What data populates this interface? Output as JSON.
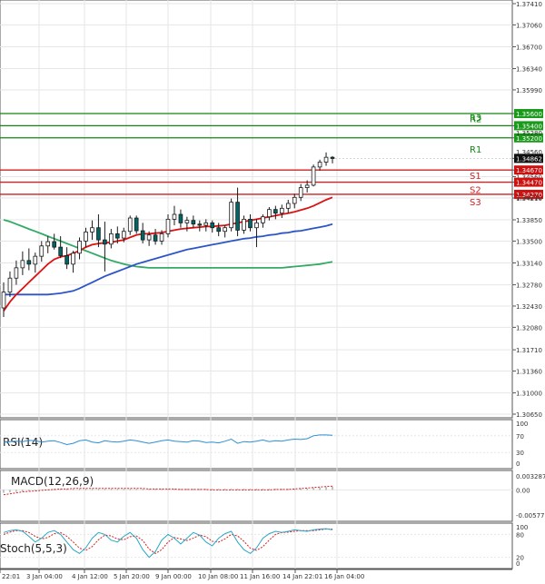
{
  "colors": {
    "background": "#ffffff",
    "grid": "#e6e6e6",
    "frame": "#555555",
    "bull_body": "#ffffff",
    "bear_body": "#006666",
    "candle_outline": "#1a1a1a",
    "ma_red": "#dd1111",
    "ma_blue": "#2d55c8",
    "ma_green": "#33aa66",
    "resistance": "#118811",
    "support": "#cc2222",
    "rsi_line": "#2a8fd6",
    "macd_hist": "#888888",
    "macd_signal": "#d62020",
    "stoch_main": "#2aa6c8",
    "stoch_signal": "#d62020",
    "current_price_bg": "#111111",
    "label_box_red": "#cc1111",
    "label_box_green": "#1a9a1a"
  },
  "chart_data": [
    {
      "type": "candlestick",
      "pane": "price",
      "ylim": [
        1.3065,
        1.3741
      ],
      "y_ticks": [
        "1.37410",
        "1.37060",
        "1.36700",
        "1.36340",
        "1.35990",
        "1.35600",
        "1.35400",
        "1.35200",
        "1.34862",
        "1.34670",
        "1.34560",
        "1.34470",
        "1.34270",
        "1.34210",
        "1.33850",
        "1.33500",
        "1.33140",
        "1.32780",
        "1.32430",
        "1.32080",
        "1.31710",
        "1.31360",
        "1.31000",
        "1.30650"
      ],
      "current_price": 1.34862,
      "current_price_label": "1.34862",
      "levels": [
        {
          "name": "R3",
          "value": 1.356,
          "label": "1.35600",
          "kind": "resistance"
        },
        {
          "name": "R2",
          "value": 1.354,
          "label": "1.35400",
          "kind": "resistance"
        },
        {
          "name": "R1",
          "value": 1.352,
          "label": "1.35200",
          "kind": "resistance"
        },
        {
          "name": "S1",
          "value": 1.3467,
          "label": "1.34670",
          "kind": "support"
        },
        {
          "name": "S2",
          "value": 1.3447,
          "label": "1.34470",
          "kind": "support"
        },
        {
          "name": "S3",
          "value": 1.3427,
          "label": "1.34270",
          "kind": "support"
        }
      ],
      "extra_tick_labels": [
        "1.35280",
        "1.34560",
        "1.34210"
      ],
      "ohlc": [
        [
          1.324,
          1.3282,
          1.3225,
          1.3266
        ],
        [
          1.3266,
          1.33,
          1.3258,
          1.3289
        ],
        [
          1.3289,
          1.3318,
          1.3278,
          1.3306
        ],
        [
          1.3306,
          1.3333,
          1.3294,
          1.3318
        ],
        [
          1.3318,
          1.3338,
          1.3302,
          1.3312
        ],
        [
          1.3312,
          1.3331,
          1.3298,
          1.3325
        ],
        [
          1.3325,
          1.335,
          1.3316,
          1.3342
        ],
        [
          1.3342,
          1.3358,
          1.333,
          1.3349
        ],
        [
          1.3349,
          1.3362,
          1.3336,
          1.334
        ],
        [
          1.334,
          1.3358,
          1.3322,
          1.3326
        ],
        [
          1.3326,
          1.334,
          1.3304,
          1.3312
        ],
        [
          1.3312,
          1.3334,
          1.3298,
          1.333
        ],
        [
          1.333,
          1.3356,
          1.332,
          1.335
        ],
        [
          1.335,
          1.3372,
          1.334,
          1.3365
        ],
        [
          1.3365,
          1.3384,
          1.3352,
          1.3372
        ],
        [
          1.3372,
          1.3394,
          1.334,
          1.3352
        ],
        [
          1.3352,
          1.3382,
          1.33,
          1.3345
        ],
        [
          1.3345,
          1.337,
          1.3338,
          1.3362
        ],
        [
          1.3362,
          1.3374,
          1.3346,
          1.3355
        ],
        [
          1.3355,
          1.3372,
          1.3348,
          1.3366
        ],
        [
          1.3366,
          1.3392,
          1.336,
          1.3388
        ],
        [
          1.3388,
          1.3392,
          1.3362,
          1.3367
        ],
        [
          1.3367,
          1.338,
          1.3346,
          1.3352
        ],
        [
          1.3352,
          1.3366,
          1.3342,
          1.336
        ],
        [
          1.336,
          1.337,
          1.3344,
          1.335
        ],
        [
          1.335,
          1.3368,
          1.3344,
          1.3362
        ],
        [
          1.3362,
          1.3394,
          1.3356,
          1.3386
        ],
        [
          1.3386,
          1.3408,
          1.3376,
          1.3394
        ],
        [
          1.3394,
          1.3402,
          1.3372,
          1.338
        ],
        [
          1.338,
          1.339,
          1.3366,
          1.3384
        ],
        [
          1.3384,
          1.3392,
          1.3372,
          1.3378
        ],
        [
          1.3378,
          1.3384,
          1.3366,
          1.3376
        ],
        [
          1.3376,
          1.3386,
          1.3366,
          1.338
        ],
        [
          1.338,
          1.3384,
          1.3364,
          1.3372
        ],
        [
          1.3372,
          1.338,
          1.3358,
          1.3366
        ],
        [
          1.3366,
          1.3376,
          1.3356,
          1.3372
        ],
        [
          1.3372,
          1.342,
          1.3366,
          1.3414
        ],
        [
          1.3414,
          1.3438,
          1.3358,
          1.3368
        ],
        [
          1.3368,
          1.3392,
          1.3362,
          1.3386
        ],
        [
          1.3386,
          1.3394,
          1.3366,
          1.3372
        ],
        [
          1.3372,
          1.3386,
          1.334,
          1.338
        ],
        [
          1.338,
          1.3394,
          1.3372,
          1.339
        ],
        [
          1.339,
          1.3406,
          1.3384,
          1.3402
        ],
        [
          1.3402,
          1.3408,
          1.3386,
          1.3396
        ],
        [
          1.3396,
          1.341,
          1.3388,
          1.3404
        ],
        [
          1.3404,
          1.3418,
          1.3396,
          1.3412
        ],
        [
          1.3412,
          1.3428,
          1.3404,
          1.3422
        ],
        [
          1.3422,
          1.3444,
          1.3416,
          1.3438
        ],
        [
          1.3438,
          1.345,
          1.343,
          1.3442
        ],
        [
          1.3442,
          1.3476,
          1.344,
          1.3472
        ],
        [
          1.3472,
          1.3484,
          1.3466,
          1.348
        ],
        [
          1.348,
          1.3496,
          1.3474,
          1.3488
        ],
        [
          1.3488,
          1.349,
          1.3478,
          1.3486
        ]
      ],
      "ma_red": [
        1.3235,
        1.325,
        1.3262,
        1.3272,
        1.3282,
        1.3292,
        1.3302,
        1.3312,
        1.332,
        1.3324,
        1.3326,
        1.333,
        1.3334,
        1.334,
        1.3344,
        1.3346,
        1.3347,
        1.3348,
        1.335,
        1.3352,
        1.3356,
        1.336,
        1.3362,
        1.3362,
        1.3363,
        1.3364,
        1.3366,
        1.3368,
        1.337,
        1.3371,
        1.3372,
        1.3373,
        1.3374,
        1.3374,
        1.3375,
        1.3376,
        1.3378,
        1.338,
        1.3382,
        1.3384,
        1.3386,
        1.3388,
        1.339,
        1.3392,
        1.3394,
        1.3396,
        1.3398,
        1.3401,
        1.3404,
        1.3408,
        1.3413,
        1.3418,
        1.3422
      ],
      "ma_blue": [
        1.3262,
        1.3262,
        1.3262,
        1.3262,
        1.3262,
        1.3262,
        1.3262,
        1.3262,
        1.3263,
        1.3264,
        1.3266,
        1.3268,
        1.3272,
        1.3277,
        1.3282,
        1.3287,
        1.3292,
        1.3296,
        1.33,
        1.3304,
        1.3308,
        1.3312,
        1.3315,
        1.3318,
        1.3321,
        1.3324,
        1.3327,
        1.333,
        1.3333,
        1.3336,
        1.3338,
        1.334,
        1.3342,
        1.3344,
        1.3346,
        1.3348,
        1.335,
        1.3352,
        1.3354,
        1.3355,
        1.3357,
        1.3358,
        1.336,
        1.3361,
        1.3363,
        1.3364,
        1.3366,
        1.3367,
        1.3369,
        1.3371,
        1.3373,
        1.3375,
        1.3378
      ],
      "ma_green": [
        1.3385,
        1.3382,
        1.3378,
        1.3374,
        1.337,
        1.3366,
        1.3362,
        1.3358,
        1.3354,
        1.335,
        1.3346,
        1.3342,
        1.3338,
        1.3334,
        1.333,
        1.3326,
        1.3322,
        1.3318,
        1.3315,
        1.3312,
        1.331,
        1.3308,
        1.3307,
        1.3306,
        1.3306,
        1.3306,
        1.3306,
        1.3306,
        1.3306,
        1.3306,
        1.3306,
        1.3306,
        1.3306,
        1.3306,
        1.3306,
        1.3306,
        1.3306,
        1.3306,
        1.3306,
        1.3306,
        1.3306,
        1.3306,
        1.3306,
        1.3306,
        1.3306,
        1.3307,
        1.3308,
        1.3309,
        1.331,
        1.3311,
        1.3312,
        1.3314,
        1.3316
      ]
    },
    {
      "type": "line",
      "pane": "rsi",
      "label": "RSI(14)",
      "ylim": [
        0,
        100
      ],
      "y_ticks": [
        "100",
        "70",
        "30",
        "0"
      ],
      "values": [
        55,
        56,
        57,
        56,
        59,
        58,
        55,
        57,
        58,
        54,
        49,
        52,
        58,
        60,
        55,
        53,
        58,
        56,
        55,
        57,
        60,
        58,
        55,
        52,
        55,
        58,
        60,
        57,
        56,
        55,
        58,
        57,
        54,
        55,
        53,
        57,
        62,
        52,
        56,
        55,
        57,
        60,
        56,
        58,
        57,
        60,
        62,
        61,
        63,
        70,
        72,
        72,
        71
      ]
    },
    {
      "type": "bar",
      "pane": "macd",
      "label": "MACD(12,26,9)",
      "ylim": [
        -0.005772,
        0.003287
      ],
      "y_ticks": [
        "0.003287",
        "0.00",
        "-0.005772"
      ],
      "histogram": [
        -0.0006,
        -0.0005,
        -0.0004,
        -0.0003,
        -0.0002,
        -0.0001,
        0.0,
        0.0001,
        0.0002,
        0.0002,
        0.0002,
        0.0002,
        0.0002,
        0.0002,
        0.0002,
        0.0002,
        0.0002,
        0.0002,
        0.0002,
        0.0002,
        0.0002,
        0.0002,
        0.0002,
        0.0002,
        0.0002,
        0.0002,
        0.0002,
        0.0002,
        0.0002,
        0.0002,
        0.0002,
        0.0002,
        0.0002,
        0.0002,
        0.0002,
        0.0002,
        0.0002,
        0.0002,
        0.0002,
        0.0002,
        0.0002,
        0.0002,
        0.0002,
        0.0002,
        0.0002,
        0.0002,
        0.0002,
        0.0003,
        0.0003,
        0.0004,
        0.0005,
        0.0006,
        0.0007
      ],
      "signal": [
        -0.001,
        -0.0008,
        -0.0006,
        -0.0004,
        -0.0003,
        -0.0002,
        -0.0001,
        0.0,
        0.0001,
        0.0002,
        0.0002,
        0.0003,
        0.0003,
        0.0003,
        0.0003,
        0.0003,
        0.0003,
        0.0003,
        0.0003,
        0.0003,
        0.0003,
        0.0003,
        0.0003,
        0.0002,
        0.0002,
        0.0002,
        0.0002,
        0.0002,
        0.0001,
        0.0001,
        0.0001,
        0.0001,
        0.0001,
        0.0,
        0.0,
        0.0,
        0.0,
        0.0,
        0.0,
        0.0,
        0.0,
        0.0,
        0.0,
        0.0001,
        0.0001,
        0.0001,
        0.0002,
        0.0003,
        0.0004,
        0.0005,
        0.0006,
        0.0007,
        0.0008
      ]
    },
    {
      "type": "line",
      "pane": "stoch",
      "label": "Stoch(5,5,3)",
      "ylim": [
        0,
        100
      ],
      "y_ticks": [
        "100",
        "80",
        "20",
        "0"
      ],
      "main": [
        85,
        90,
        92,
        88,
        75,
        60,
        70,
        85,
        90,
        80,
        60,
        40,
        30,
        45,
        70,
        85,
        80,
        65,
        60,
        75,
        85,
        70,
        40,
        20,
        35,
        65,
        80,
        70,
        55,
        70,
        85,
        78,
        60,
        50,
        70,
        82,
        88,
        60,
        40,
        30,
        45,
        70,
        82,
        88,
        85,
        88,
        92,
        90,
        88,
        92,
        94,
        95,
        92
      ],
      "signal": [
        80,
        86,
        90,
        90,
        85,
        75,
        68,
        72,
        82,
        85,
        75,
        60,
        44,
        38,
        48,
        66,
        78,
        76,
        68,
        66,
        74,
        76,
        64,
        42,
        30,
        40,
        60,
        72,
        68,
        64,
        70,
        78,
        74,
        62,
        60,
        68,
        80,
        76,
        62,
        44,
        38,
        48,
        65,
        80,
        85,
        86,
        88,
        90,
        90,
        90,
        92,
        94,
        94
      ]
    }
  ],
  "x_axis_labels": [
    "22:01",
    "3 Jan 04:00",
    "4 Jan 12:00",
    "5 Jan 20:00",
    "9 Jan 00:00",
    "10 Jan 08:00",
    "11 Jan 16:00",
    "14 Jan 22:01",
    "16 Jan 04:00"
  ]
}
